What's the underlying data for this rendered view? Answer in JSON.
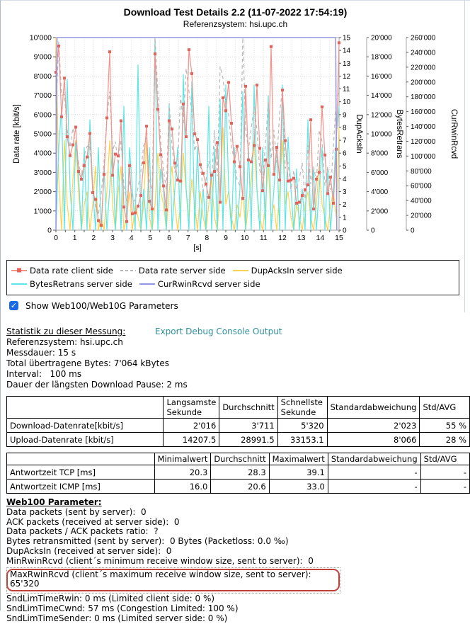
{
  "page": {
    "title": "Download Test Details 2.2 (11-07-2022 17:54:19)",
    "subtitle": "Referenzsystem: hsi.upc.ch"
  },
  "colors": {
    "link": "#2f8f99",
    "checkbox": "#1b6ae5",
    "highlight_ring": "#c2403a",
    "grid": "#dcdcdc",
    "frame": "#a0a0a0"
  },
  "chart_data": {
    "type": "line",
    "title": "Download Test Details 2.2 (11-07-2022 17:54:19)",
    "subtitle": "Referenzsystem: hsi.upc.ch",
    "x_axis": {
      "label": "[s]",
      "min": 0,
      "max": 15,
      "tick_step": 1,
      "grid_step": 0.5,
      "tick_labels": [
        "0",
        "1",
        "2",
        "3",
        "4",
        "5",
        "6",
        "7",
        "8",
        "9",
        "10",
        "11",
        "12",
        "13",
        "14",
        "15"
      ]
    },
    "y_axes": [
      {
        "id": "datarate",
        "label": "Data rate [kbit/s]",
        "side": "left",
        "min": 0,
        "max": 10000,
        "tick_step": 1000,
        "tick_labels": [
          "0",
          "1'000",
          "2'000",
          "3'000",
          "4'000",
          "5'000",
          "6'000",
          "7'000",
          "8'000",
          "9'000",
          "10'000"
        ]
      },
      {
        "id": "dupacks",
        "label": "DupAcksIn",
        "side": "right",
        "min": 0,
        "max": 15,
        "tick_step": 1,
        "tick_labels": [
          "0",
          "1",
          "2",
          "3",
          "4",
          "5",
          "6",
          "7",
          "8",
          "9",
          "10",
          "11",
          "12",
          "13",
          "14",
          "15"
        ]
      },
      {
        "id": "bytesretrans",
        "label": "BytesRetrans",
        "side": "right",
        "min": 0,
        "max": 20000,
        "tick_step": 2000,
        "tick_labels": [
          "0",
          "2'000",
          "4'000",
          "6'000",
          "8'000",
          "10'000",
          "12'000",
          "14'000",
          "16'000",
          "18'000",
          "20'000"
        ]
      },
      {
        "id": "currwin",
        "label": "CurRwinRcvd",
        "side": "right",
        "min": 0,
        "max": 260000,
        "tick_step": 20000,
        "tick_labels": [
          "0",
          "20'000",
          "40'000",
          "60'000",
          "80'000",
          "100'000",
          "120'000",
          "140'000",
          "160'000",
          "180'000",
          "200'000",
          "220'000",
          "240'000",
          "260'000"
        ]
      }
    ],
    "x_start": 0,
    "x_step": 0.15,
    "series": [
      {
        "name": "Data rate client side",
        "axis": "datarate",
        "color": "#f2928a",
        "marker_color": "#e8625a",
        "marker": "square",
        "values": [
          8200,
          9560,
          5880,
          7890,
          4850,
          3870,
          4430,
          5350,
          3050,
          2650,
          3350,
          3800,
          5020,
          1950,
          1600,
          500,
          250,
          2900,
          5830,
          9260,
          2850,
          3950,
          3850,
          5680,
          1200,
          450,
          3350,
          850,
          900,
          1250,
          1800,
          3500,
          5400,
          1500,
          1100,
          9150,
          6280,
          3920,
          2300,
          1050,
          5680,
          5250,
          3480,
          2600,
          2550,
          6550,
          4850,
          9370,
          8130,
          5000,
          4700,
          3400,
          2950,
          2400,
          1700,
          2850,
          3050,
          4550,
          1450,
          6870,
          6200,
          7670,
          5550,
          3550,
          4350,
          3300,
          1650,
          7470,
          3650,
          3550,
          4400,
          7530,
          4250,
          2050,
          3650,
          3350,
          9530,
          2900,
          4300,
          2600,
          7270,
          4650,
          2550,
          2600,
          2700,
          1400,
          1450,
          1800,
          2100,
          2350,
          5730,
          1100,
          2650,
          3000,
          6400,
          3900,
          1900,
          2750,
          1400,
          4200,
          9730
        ]
      },
      {
        "name": "Data rate server side",
        "axis": "datarate",
        "color": "#b8b8b8",
        "dash": "5,4",
        "values": [
          6000,
          9800,
          7000,
          7050,
          5200,
          4300,
          5300,
          4400,
          3500,
          2800,
          3900,
          4350,
          4400,
          2300,
          1200,
          800,
          1900,
          3500,
          5900,
          7200,
          4100,
          4600,
          3400,
          4700,
          2300,
          1500,
          2600,
          1700,
          1500,
          2200,
          3050,
          4400,
          4800,
          2500,
          2100,
          10000,
          7200,
          4600,
          3100,
          2100,
          6600,
          4400,
          3000,
          3400,
          7000,
          5500,
          8400,
          7200,
          6200,
          4100,
          4600,
          3500,
          2000,
          2600,
          3600,
          2600,
          5200,
          2800,
          8500,
          7900,
          6400,
          6000,
          4300,
          3700,
          2600,
          2300,
          10000,
          5300,
          4200,
          5300,
          6400,
          5200,
          3100,
          2700,
          4400,
          6700,
          3700,
          5200,
          3500,
          6100,
          7300,
          3200,
          3500,
          2100,
          3100,
          2100,
          2700,
          3500,
          1600,
          4400,
          2400,
          3300,
          2500,
          5200,
          4600,
          2300,
          3300,
          2100,
          4300,
          6800,
          7200
        ]
      },
      {
        "name": "DupAcksIn server side",
        "axis": "dupacks",
        "color": "#ffd34f",
        "values": [
          15,
          4,
          0,
          7,
          2,
          0,
          4,
          7,
          3,
          0,
          2,
          3,
          0,
          2,
          5,
          0,
          1,
          0,
          3,
          7,
          2,
          0,
          3,
          5,
          0,
          1,
          3,
          0,
          2,
          1,
          0,
          2,
          7,
          1,
          0,
          2,
          6,
          3,
          2,
          0,
          3,
          5,
          2,
          0,
          2,
          6,
          3,
          1,
          4,
          2,
          0,
          3,
          1,
          0,
          2,
          4,
          1,
          0,
          3,
          8,
          2,
          3,
          1,
          0,
          2,
          1,
          3,
          0,
          2,
          4,
          7,
          3,
          1,
          0,
          2,
          5,
          1,
          2,
          0,
          3,
          7,
          2,
          3,
          1,
          0,
          2,
          1,
          0,
          2,
          3,
          1,
          0,
          2,
          5,
          2,
          1,
          0,
          2,
          3,
          1,
          8
        ]
      },
      {
        "name": "BytesRetrans server side",
        "axis": "bytesretrans",
        "color": "#5ce6e6",
        "values": [
          0,
          8600,
          12800,
          0,
          15700,
          4300,
          0,
          9100,
          5600,
          0,
          8600,
          0,
          11500,
          4300,
          0,
          8600,
          0,
          6400,
          0,
          4300,
          8600,
          0,
          7000,
          0,
          12900,
          0,
          8600,
          4300,
          0,
          17200,
          0,
          4300,
          0,
          8600,
          0,
          19900,
          0,
          6400,
          4300,
          0,
          13000,
          0,
          4300,
          8600,
          0,
          16200,
          4300,
          0,
          15500,
          0,
          8600,
          0,
          4300,
          0,
          12900,
          0,
          8600,
          0,
          13600,
          0,
          15100,
          4300,
          0,
          8600,
          0,
          4300,
          14400,
          0,
          8600,
          0,
          15100,
          4300,
          0,
          8600,
          0,
          14000,
          0,
          4300,
          8600,
          0,
          15100,
          0,
          9700,
          4300,
          0,
          6400,
          0,
          4300,
          0,
          11500,
          0,
          6400,
          0,
          4300,
          8600,
          0,
          6400,
          0,
          4300,
          9700,
          12900
        ]
      },
      {
        "name": "CurRwinRcvd server side",
        "axis": "currwin",
        "color": "#9295e2",
        "points": [
          [
            0,
            0
          ],
          [
            0.06,
            260000
          ],
          [
            14.82,
            260000
          ],
          [
            14.88,
            0
          ]
        ]
      }
    ]
  },
  "legend": {
    "items": [
      {
        "label": "Data rate client side",
        "color": "#f2928a",
        "marker_color": "#e8625a",
        "type": "marker-line"
      },
      {
        "label": "Data rate server side",
        "color": "#b8b8b8",
        "type": "dashed"
      },
      {
        "label": "DupAcksIn server side",
        "color": "#ffd34f",
        "type": "line"
      },
      {
        "label": "BytesRetrans server side",
        "color": "#5ce6e6",
        "type": "line"
      },
      {
        "label": "CurRwinRcvd server side",
        "color": "#9295e2",
        "type": "line"
      }
    ]
  },
  "controls": {
    "checkbox_label": "Show Web100/Web10G Parameters",
    "checked": true,
    "checkmark": "✓"
  },
  "stats": {
    "heading": "Statistik zu dieser Messung: ",
    "link": "Export Debug Console Output",
    "lines": [
      "Referenzsystem: hsi.upc.ch",
      "Messdauer: 15 s",
      "Total übertragene Bytes: 7'064 kBytes",
      "Interval:   100 ms",
      "Dauer der längsten Download Pause: 2 ms"
    ]
  },
  "table1": {
    "headers": [
      "",
      "Langsamste Sekunde",
      "Durchschnitt",
      "Schnellste Sekunde",
      "Standardabweichung",
      "Std/AVG"
    ],
    "rows": [
      [
        "Download-Datenrate[kbit/s]",
        "2'016",
        "3'711",
        "5'320",
        "2'023",
        "55 %"
      ],
      [
        "Upload-Datenrate [kbit/s]",
        "14207.5",
        "28991.5",
        "33153.1",
        "8'066",
        "28 %"
      ]
    ]
  },
  "table2": {
    "headers": [
      "",
      "Minimalwert",
      "Durchschnitt",
      "Maximalwert",
      "Standardabweichung",
      "Std/AVG"
    ],
    "rows": [
      [
        "Antwortzeit TCP [ms]",
        "20.3",
        "28.3",
        "39.1",
        "-",
        "-"
      ],
      [
        "Antwortzeit ICMP [ms]",
        "16.0",
        "20.6",
        "33.0",
        "-",
        "-"
      ]
    ]
  },
  "web100": {
    "heading": "Web100 Parameter:",
    "lines": [
      "Data packets (sent by server):  0",
      "ACK packets (received at server side):  0",
      "Data packets / ACK packets ratio:  ?",
      "Bytes retransmitted (sent by server):  0 Bytes (Packetloss: 0.0 ‰)",
      "DupAcksIn (received at server side):  0",
      "MinRwinRcvd (client´s minimum receive window size, sent to server):  0",
      "MaxRwinRcvd (client´s maximum receive window size, sent to server):  65'320",
      "SndLimTimeRwin: 0 ms (Limited client side: 0 %)",
      "SndLimTimeCwnd: 57 ms (Congestion Limited: 100 %)",
      "SndLimTimeSender: 0 ms (Limited server side: 0 %)"
    ],
    "highlight_index": 6
  }
}
